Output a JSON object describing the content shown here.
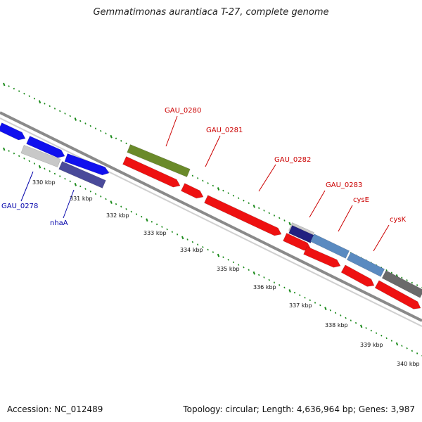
{
  "title": "Gemmatimonas aurantiaca T-27, complete genome",
  "accession": "Accession: NC_012489",
  "summary": "Topology: circular; Length: 4,636,964 bp; Genes: 3,987",
  "colors": {
    "forward_blue": "#1010ee",
    "gray_light": "#c8c8c8",
    "slate": "#4a4a9a",
    "olive": "#6a8a2a",
    "red": "#ee1111",
    "steel_blue": "#5a8ac0",
    "dark_gray": "#6a6a6a",
    "navy": "#202080",
    "tick_green": "#1a8a1a",
    "label_red": "#cc0000",
    "label_blue": "#0000aa"
  },
  "tick_labels": [
    "330 kbp",
    "331 kbp",
    "332 kbp",
    "333 kbp",
    "334 kbp",
    "335 kbp",
    "336 kbp",
    "337 kbp",
    "338 kbp",
    "339 kbp",
    "340 kbp"
  ],
  "gene_labels": [
    {
      "name": "GAU_0278",
      "color": "label_blue"
    },
    {
      "name": "nhaA",
      "color": "label_blue"
    },
    {
      "name": "GAU_0280",
      "color": "label_red"
    },
    {
      "name": "GAU_0281",
      "color": "label_red"
    },
    {
      "name": "GAU_0282",
      "color": "label_red"
    },
    {
      "name": "GAU_0283",
      "color": "label_red"
    },
    {
      "name": "cysE",
      "color": "label_red"
    },
    {
      "name": "cysK",
      "color": "label_red"
    }
  ]
}
